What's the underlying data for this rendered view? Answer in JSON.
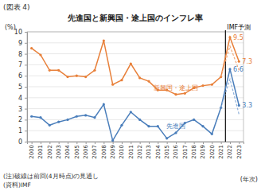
{
  "chart_data": {
    "type": "line",
    "figure_label": "(図表 4)",
    "title": "先進国と新興国・途上国のインフレ率",
    "y_label": "(%)",
    "x_label": "(年次)",
    "notes": [
      "(注)破線は前回(4月時点)の見通し",
      "(資料)IMF"
    ],
    "annotations": [
      {
        "text": "IMF予測",
        "x": "2022"
      }
    ],
    "categories": [
      "2000",
      "2001",
      "2002",
      "2003",
      "2004",
      "2005",
      "2006",
      "2007",
      "2008",
      "2009",
      "2010",
      "2011",
      "2012",
      "2013",
      "2014",
      "2015",
      "2016",
      "2017",
      "2018",
      "2019",
      "2020",
      "2021",
      "2022",
      "2023"
    ],
    "series": [
      {
        "name": "新興国・途上国",
        "color": "#e8803a",
        "marker": "circle",
        "line_style": "solid",
        "values": [
          8.5,
          7.9,
          6.5,
          6.5,
          5.9,
          6.0,
          5.9,
          6.5,
          9.2,
          5.2,
          5.6,
          7.1,
          5.8,
          5.5,
          4.7,
          4.7,
          4.3,
          4.4,
          4.9,
          5.1,
          5.2,
          5.9,
          9.5,
          7.3
        ],
        "value_labels": [
          null,
          null,
          null,
          null,
          null,
          null,
          null,
          null,
          null,
          null,
          null,
          null,
          null,
          null,
          null,
          null,
          null,
          null,
          null,
          null,
          null,
          null,
          "9.5",
          "7.3"
        ]
      },
      {
        "name": "先進国",
        "color": "#4a7ebb",
        "marker": "circle",
        "line_style": "solid",
        "values": [
          2.3,
          2.2,
          1.5,
          1.8,
          2.0,
          2.3,
          2.4,
          2.2,
          3.4,
          0.1,
          1.5,
          2.7,
          2.0,
          1.4,
          1.4,
          0.3,
          0.8,
          1.7,
          2.0,
          1.4,
          0.7,
          3.1,
          6.6,
          3.3
        ],
        "value_labels": [
          null,
          null,
          null,
          null,
          null,
          null,
          null,
          null,
          null,
          null,
          null,
          null,
          null,
          null,
          null,
          null,
          null,
          null,
          null,
          null,
          null,
          null,
          "6.6",
          "3.3"
        ]
      },
      {
        "color": "#f0a878",
        "line_style": "dashed",
        "values": [
          null,
          null,
          null,
          null,
          null,
          null,
          null,
          null,
          null,
          null,
          null,
          null,
          null,
          null,
          null,
          null,
          null,
          null,
          null,
          null,
          null,
          5.9,
          8.7,
          6.5
        ]
      },
      {
        "color": "#8fb0da",
        "line_style": "dashed",
        "values": [
          null,
          null,
          null,
          null,
          null,
          null,
          null,
          null,
          null,
          null,
          null,
          null,
          null,
          null,
          null,
          null,
          null,
          null,
          null,
          null,
          null,
          3.1,
          5.7,
          2.5
        ]
      }
    ],
    "ylim": [
      0,
      10
    ],
    "yticks": [
      0,
      1,
      2,
      3,
      4,
      5,
      6,
      7,
      8,
      9,
      10
    ],
    "grid": true
  }
}
